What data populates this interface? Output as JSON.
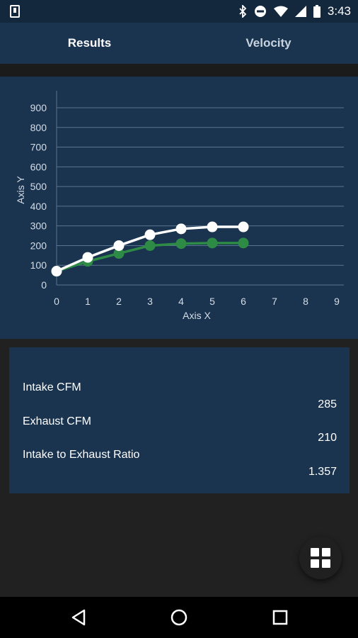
{
  "status_bar": {
    "time": "3:43",
    "icons": [
      "screenshot-icon",
      "bluetooth-icon",
      "do-not-disturb-icon",
      "wifi-icon",
      "cell-signal-icon",
      "battery-icon"
    ]
  },
  "tabs": [
    {
      "label": "Results",
      "active": true
    },
    {
      "label": "Velocity",
      "active": false
    }
  ],
  "chart_data": {
    "type": "line",
    "x": [
      0,
      1,
      2,
      3,
      4,
      5,
      6
    ],
    "series": [
      {
        "color": "#ffffff",
        "values": [
          70,
          140,
          200,
          255,
          285,
          295,
          295
        ]
      },
      {
        "color": "#2e8b45",
        "values": [
          70,
          120,
          160,
          200,
          210,
          213,
          213
        ]
      }
    ],
    "xlabel": "Axis X",
    "ylabel": "Axis Y",
    "xlim": [
      0,
      9
    ],
    "ylim": [
      0,
      900
    ],
    "x_ticks": [
      "0",
      "1",
      "2",
      "3",
      "4",
      "5",
      "6",
      "7",
      "8",
      "9"
    ],
    "y_ticks": [
      "0",
      "100",
      "200",
      "300",
      "400",
      "500",
      "600",
      "700",
      "800",
      "900"
    ],
    "grid": true
  },
  "results": [
    {
      "label": "Intake CFM",
      "value": "285"
    },
    {
      "label": "Exhaust CFM",
      "value": "210"
    },
    {
      "label": "Intake to Exhaust Ratio",
      "value": "1.357"
    }
  ],
  "fab": {
    "icon": "grid-view-icon"
  },
  "nav_bar": {
    "icons": [
      "back-icon",
      "home-icon",
      "recents-icon"
    ]
  },
  "colors": {
    "primary": "#1a3450",
    "background": "#212121",
    "status_bar": "#13273d",
    "series_intake": "#ffffff",
    "series_exhaust": "#2e8b45"
  }
}
